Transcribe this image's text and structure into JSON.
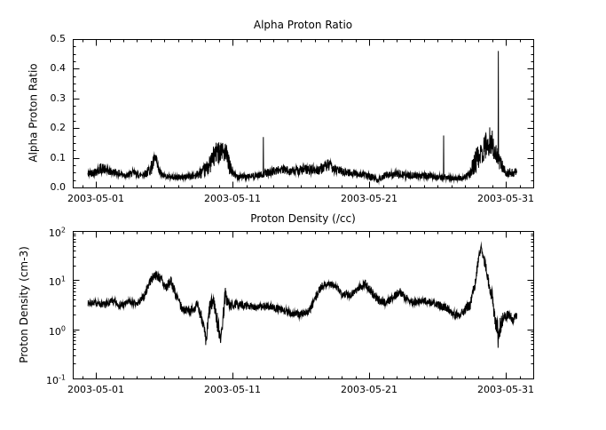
{
  "figure": {
    "background": "#ffffff",
    "line_color": "#000000"
  },
  "chart_data": [
    {
      "type": "line",
      "title": "Alpha Proton Ratio",
      "ylabel": "Alpha Proton Ratio",
      "xlabel": "",
      "yscale": "linear",
      "ylim": [
        0.0,
        0.5
      ],
      "y_ticks": [
        0.0,
        0.1,
        0.2,
        0.3,
        0.4,
        0.5
      ],
      "y_tick_labels": [
        "0.0",
        "0.1",
        "0.2",
        "0.3",
        "0.4",
        "0.5"
      ],
      "y_minor_step": 0.025,
      "xlim_days": [
        -0.7,
        33.0
      ],
      "x_tick_days": [
        1,
        11,
        21,
        31
      ],
      "x_tick_labels": [
        "2003-05-01",
        "2003-05-11",
        "2003-05-21",
        "2003-05-31"
      ],
      "grid": false,
      "legend": false,
      "series_color": "#000000",
      "samples": 1900,
      "seed": 42,
      "keypoints": [
        [
          0.4,
          0.045,
          0.012
        ],
        [
          1.0,
          0.055,
          0.015
        ],
        [
          1.4,
          0.065,
          0.02
        ],
        [
          1.9,
          0.055,
          0.015
        ],
        [
          2.4,
          0.05,
          0.013
        ],
        [
          2.9,
          0.045,
          0.012
        ],
        [
          3.3,
          0.04,
          0.01
        ],
        [
          3.7,
          0.05,
          0.013
        ],
        [
          4.2,
          0.042,
          0.01
        ],
        [
          4.7,
          0.048,
          0.014
        ],
        [
          5.1,
          0.07,
          0.025
        ],
        [
          5.35,
          0.1,
          0.022
        ],
        [
          5.6,
          0.055,
          0.018
        ],
        [
          5.9,
          0.04,
          0.01
        ],
        [
          6.6,
          0.035,
          0.009
        ],
        [
          7.4,
          0.035,
          0.01
        ],
        [
          8.2,
          0.04,
          0.012
        ],
        [
          8.8,
          0.05,
          0.02
        ],
        [
          9.3,
          0.075,
          0.03
        ],
        [
          9.7,
          0.11,
          0.04
        ],
        [
          10.2,
          0.13,
          0.035
        ],
        [
          10.55,
          0.105,
          0.04
        ],
        [
          10.85,
          0.06,
          0.025
        ],
        [
          11.2,
          0.04,
          0.012
        ],
        [
          12.0,
          0.035,
          0.01
        ],
        [
          12.8,
          0.04,
          0.011
        ],
        [
          13.6,
          0.05,
          0.013
        ],
        [
          14.5,
          0.06,
          0.016
        ],
        [
          15.4,
          0.055,
          0.015
        ],
        [
          16.3,
          0.06,
          0.018
        ],
        [
          17.2,
          0.058,
          0.018
        ],
        [
          18.0,
          0.075,
          0.02
        ],
        [
          18.5,
          0.06,
          0.016
        ],
        [
          19.4,
          0.05,
          0.013
        ],
        [
          20.4,
          0.045,
          0.012
        ],
        [
          21.2,
          0.035,
          0.012
        ],
        [
          21.6,
          0.025,
          0.008
        ],
        [
          22.1,
          0.04,
          0.011
        ],
        [
          23.0,
          0.045,
          0.013
        ],
        [
          24.0,
          0.04,
          0.012
        ],
        [
          25.0,
          0.04,
          0.011
        ],
        [
          26.0,
          0.035,
          0.01
        ],
        [
          27.0,
          0.032,
          0.009
        ],
        [
          27.8,
          0.03,
          0.009
        ],
        [
          28.3,
          0.042,
          0.016
        ],
        [
          28.8,
          0.09,
          0.04
        ],
        [
          29.4,
          0.13,
          0.05
        ],
        [
          29.9,
          0.16,
          0.05
        ],
        [
          30.2,
          0.12,
          0.04
        ],
        [
          30.6,
          0.08,
          0.025
        ],
        [
          31.0,
          0.05,
          0.015
        ],
        [
          31.8,
          0.05,
          0.013
        ]
      ],
      "spikes": [
        [
          13.25,
          0.17
        ],
        [
          26.45,
          0.175
        ],
        [
          30.45,
          0.46
        ]
      ]
    },
    {
      "type": "line",
      "title": "Proton Density (/cc)",
      "ylabel": "Proton Density (cm-3)",
      "xlabel": "",
      "yscale": "log",
      "ylim_exp": [
        -1,
        2
      ],
      "y_tick_exps": [
        "-1",
        "0",
        "1",
        "2"
      ],
      "xlim_days": [
        -0.7,
        33.0
      ],
      "x_tick_days": [
        1,
        11,
        21,
        31
      ],
      "x_tick_labels": [
        "2003-05-01",
        "2003-05-11",
        "2003-05-21",
        "2003-05-31"
      ],
      "grid": false,
      "legend": false,
      "series_color": "#000000",
      "samples": 1900,
      "seed": 7,
      "keypoints": [
        [
          0.4,
          3.4,
          0.06
        ],
        [
          1.0,
          3.5,
          0.06
        ],
        [
          1.6,
          3.1,
          0.07
        ],
        [
          2.2,
          3.8,
          0.06
        ],
        [
          2.8,
          3.0,
          0.07
        ],
        [
          3.4,
          3.6,
          0.07
        ],
        [
          4.0,
          3.2,
          0.06
        ],
        [
          4.5,
          4.5,
          0.08
        ],
        [
          4.9,
          9.0,
          0.1
        ],
        [
          5.3,
          13.0,
          0.09
        ],
        [
          5.7,
          11.0,
          0.1
        ],
        [
          6.1,
          7.0,
          0.12
        ],
        [
          6.5,
          9.5,
          0.1
        ],
        [
          6.9,
          4.5,
          0.13
        ],
        [
          7.3,
          2.6,
          0.08
        ],
        [
          7.9,
          2.4,
          0.08
        ],
        [
          8.4,
          3.0,
          0.1
        ],
        [
          8.8,
          1.6,
          0.15
        ],
        [
          9.05,
          0.5,
          0.18
        ],
        [
          9.3,
          2.5,
          0.2
        ],
        [
          9.6,
          4.0,
          0.13
        ],
        [
          9.9,
          1.3,
          0.2
        ],
        [
          10.15,
          0.65,
          0.15
        ],
        [
          10.45,
          5.0,
          0.18
        ],
        [
          10.75,
          3.0,
          0.1
        ],
        [
          11.3,
          3.2,
          0.08
        ],
        [
          12.1,
          3.0,
          0.07
        ],
        [
          12.9,
          2.8,
          0.07
        ],
        [
          13.6,
          3.0,
          0.07
        ],
        [
          14.3,
          2.6,
          0.08
        ],
        [
          15.1,
          2.2,
          0.08
        ],
        [
          15.9,
          2.0,
          0.08
        ],
        [
          16.6,
          2.3,
          0.08
        ],
        [
          17.1,
          4.5,
          0.1
        ],
        [
          17.5,
          7.5,
          0.08
        ],
        [
          18.0,
          8.5,
          0.07
        ],
        [
          18.5,
          7.5,
          0.07
        ],
        [
          19.0,
          5.5,
          0.08
        ],
        [
          19.6,
          5.0,
          0.08
        ],
        [
          20.1,
          6.5,
          0.08
        ],
        [
          20.7,
          8.5,
          0.09
        ],
        [
          21.1,
          6.0,
          0.1
        ],
        [
          21.6,
          4.0,
          0.09
        ],
        [
          22.2,
          3.5,
          0.08
        ],
        [
          22.8,
          4.5,
          0.08
        ],
        [
          23.2,
          6.0,
          0.08
        ],
        [
          23.7,
          4.2,
          0.08
        ],
        [
          24.3,
          3.5,
          0.08
        ],
        [
          25.1,
          3.8,
          0.07
        ],
        [
          25.9,
          3.2,
          0.08
        ],
        [
          26.6,
          2.8,
          0.08
        ],
        [
          27.3,
          2.0,
          0.09
        ],
        [
          27.9,
          2.3,
          0.09
        ],
        [
          28.4,
          3.2,
          0.1
        ],
        [
          28.75,
          9.0,
          0.12
        ],
        [
          29.0,
          28.0,
          0.1
        ],
        [
          29.2,
          45.0,
          0.07
        ],
        [
          29.45,
          24.0,
          0.12
        ],
        [
          29.7,
          10.0,
          0.12
        ],
        [
          30.0,
          4.5,
          0.15
        ],
        [
          30.25,
          1.3,
          0.18
        ],
        [
          30.5,
          0.95,
          0.22
        ],
        [
          30.8,
          1.7,
          0.12
        ],
        [
          31.2,
          2.1,
          0.1
        ],
        [
          31.5,
          1.6,
          0.1
        ],
        [
          31.8,
          1.9,
          0.08
        ]
      ],
      "spikes": [
        [
          29.18,
          52
        ],
        [
          30.42,
          0.42
        ]
      ]
    }
  ]
}
